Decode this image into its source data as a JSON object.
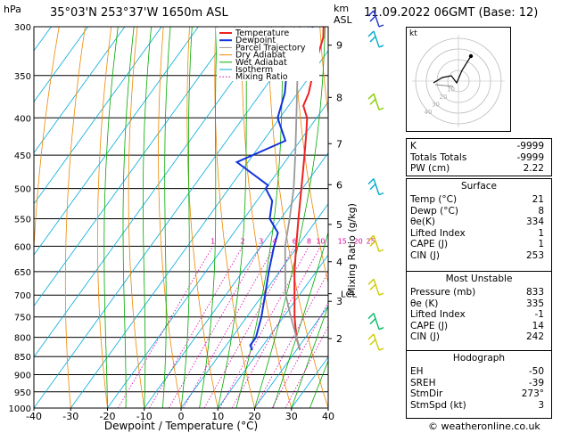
{
  "header": {
    "location": "35°03'N  253°37'W  1650m  ASL",
    "date": "11.09.2022  06GMT  (Base: 12)",
    "hpa_label": "hPa",
    "km_label": "km",
    "asl_label": "ASL"
  },
  "footer": {
    "credit": "© weatheronline.co.uk"
  },
  "colors": {
    "temperature": "#ee2222",
    "dewpoint": "#1133dd",
    "parcel": "#999999",
    "dry_adiabat": "#ee8800",
    "wet_adiabat": "#00aa00",
    "isotherm": "#00aadd",
    "mixing_ratio": "#dd00aa"
  },
  "chart_data": {
    "type": "line",
    "title": "",
    "xlabel": "Dewpoint / Temperature (°C)",
    "ylabel_right": "Mixing Ratio (g/kg)",
    "x_ticks": [
      "-40",
      "-30",
      "-20",
      "-10",
      "0",
      "10",
      "20",
      "30",
      "40"
    ],
    "x_tick_values": [
      -40,
      -30,
      -20,
      -10,
      0,
      10,
      20,
      30,
      40
    ],
    "xlim": [
      -40,
      40
    ],
    "ylim_hpa": [
      1000,
      300
    ],
    "y_log": true,
    "pressure_ticks": [
      "300",
      "350",
      "400",
      "450",
      "500",
      "550",
      "600",
      "650",
      "700",
      "750",
      "800",
      "850",
      "900",
      "950",
      "1000"
    ],
    "pressure_tick_values": [
      300,
      350,
      400,
      450,
      500,
      550,
      600,
      650,
      700,
      750,
      800,
      850,
      900,
      950,
      1000
    ],
    "km_ticks": [
      {
        "label": "9",
        "p": 318
      },
      {
        "label": "8",
        "p": 375
      },
      {
        "label": "7",
        "p": 434
      },
      {
        "label": "6",
        "p": 494
      },
      {
        "label": "5",
        "p": 560
      },
      {
        "label": "4",
        "p": 630
      },
      {
        "label": "3",
        "p": 714
      },
      {
        "label": "2",
        "p": 803
      }
    ],
    "lcl": {
      "label": "LCL",
      "p": 697
    },
    "mixing_ratio_labels": [
      "1",
      "2",
      "3",
      "4",
      "6",
      "8",
      "10",
      "15",
      "20",
      "25"
    ],
    "legend": [
      {
        "label": "Temperature",
        "key": "temperature"
      },
      {
        "label": "Dewpoint",
        "key": "dewpoint"
      },
      {
        "label": "Parcel Trajectory",
        "key": "parcel"
      },
      {
        "label": "Dry Adiabat",
        "key": "dry_adiabat"
      },
      {
        "label": "Wet Adiabat",
        "key": "wet_adiabat"
      },
      {
        "label": "Isotherm",
        "key": "isotherm"
      },
      {
        "label": "Mixing Ratio",
        "key": "mixing_ratio"
      }
    ],
    "series": [
      {
        "name": "Temperature",
        "points": [
          [
            833,
            21
          ],
          [
            800,
            17.5
          ],
          [
            750,
            13
          ],
          [
            700,
            8.7
          ],
          [
            650,
            4.1
          ],
          [
            600,
            -0.4
          ],
          [
            550,
            -5.2
          ],
          [
            500,
            -10.3
          ],
          [
            450,
            -16
          ],
          [
            420,
            -19.8
          ],
          [
            400,
            -22.6
          ],
          [
            385,
            -26
          ],
          [
            370,
            -27
          ],
          [
            350,
            -29.4
          ],
          [
            330,
            -31.7
          ],
          [
            310,
            -34
          ],
          [
            300,
            -36
          ]
        ]
      },
      {
        "name": "Dewpoint",
        "points": [
          [
            833,
            8
          ],
          [
            820,
            6.5
          ],
          [
            800,
            6.5
          ],
          [
            750,
            4
          ],
          [
            700,
            0.7
          ],
          [
            650,
            -2.9
          ],
          [
            600,
            -6.4
          ],
          [
            575,
            -8
          ],
          [
            550,
            -13
          ],
          [
            520,
            -15.8
          ],
          [
            500,
            -20
          ],
          [
            495,
            -20
          ],
          [
            460,
            -33
          ],
          [
            430,
            -24
          ],
          [
            400,
            -30.6
          ],
          [
            370,
            -33.5
          ],
          [
            350,
            -36.5
          ],
          [
            330,
            -35
          ],
          [
            310,
            -36.5
          ],
          [
            300,
            -39
          ]
        ]
      },
      {
        "name": "Parcel Trajectory",
        "points": [
          [
            833,
            21
          ],
          [
            750,
            12
          ],
          [
            697,
            6
          ],
          [
            650,
            1.6
          ],
          [
            600,
            -3.4
          ],
          [
            550,
            -7.6
          ],
          [
            500,
            -12.4
          ],
          [
            450,
            -18.5
          ],
          [
            400,
            -25.5
          ],
          [
            350,
            -33.5
          ],
          [
            300,
            -42.5
          ]
        ]
      }
    ],
    "wind_barbs_p": [
      300,
      320,
      390,
      510,
      610,
      700,
      780,
      833
    ],
    "hodograph_label": "kt",
    "hodograph_rings": [
      "40",
      "30",
      "20",
      "10"
    ],
    "indices": {
      "top": [
        {
          "label": "K",
          "value": "-9999"
        },
        {
          "label": "Totals Totals",
          "value": "-9999"
        },
        {
          "label": "PW (cm)",
          "value": "2.22"
        }
      ],
      "surface_title": "Surface",
      "surface": [
        {
          "label": "Temp (°C)",
          "value": "21"
        },
        {
          "label": "Dewp (°C)",
          "value": "8"
        },
        {
          "label": "θe(K)",
          "value": "334"
        },
        {
          "label": "Lifted Index",
          "value": "1"
        },
        {
          "label": "CAPE (J)",
          "value": "1"
        },
        {
          "label": "CIN (J)",
          "value": "253"
        }
      ],
      "mu_title": "Most Unstable",
      "most_unstable": [
        {
          "label": "Pressure (mb)",
          "value": "833"
        },
        {
          "label": "θe (K)",
          "value": "335"
        },
        {
          "label": "Lifted Index",
          "value": "-1"
        },
        {
          "label": "CAPE (J)",
          "value": "14"
        },
        {
          "label": "CIN (J)",
          "value": "242"
        }
      ],
      "hodo_title": "Hodograph",
      "hodograph": [
        {
          "label": "EH",
          "value": "-50"
        },
        {
          "label": "SREH",
          "value": "-39"
        },
        {
          "label": "StmDir",
          "value": "273°"
        },
        {
          "label": "StmSpd (kt)",
          "value": "3"
        }
      ]
    }
  }
}
